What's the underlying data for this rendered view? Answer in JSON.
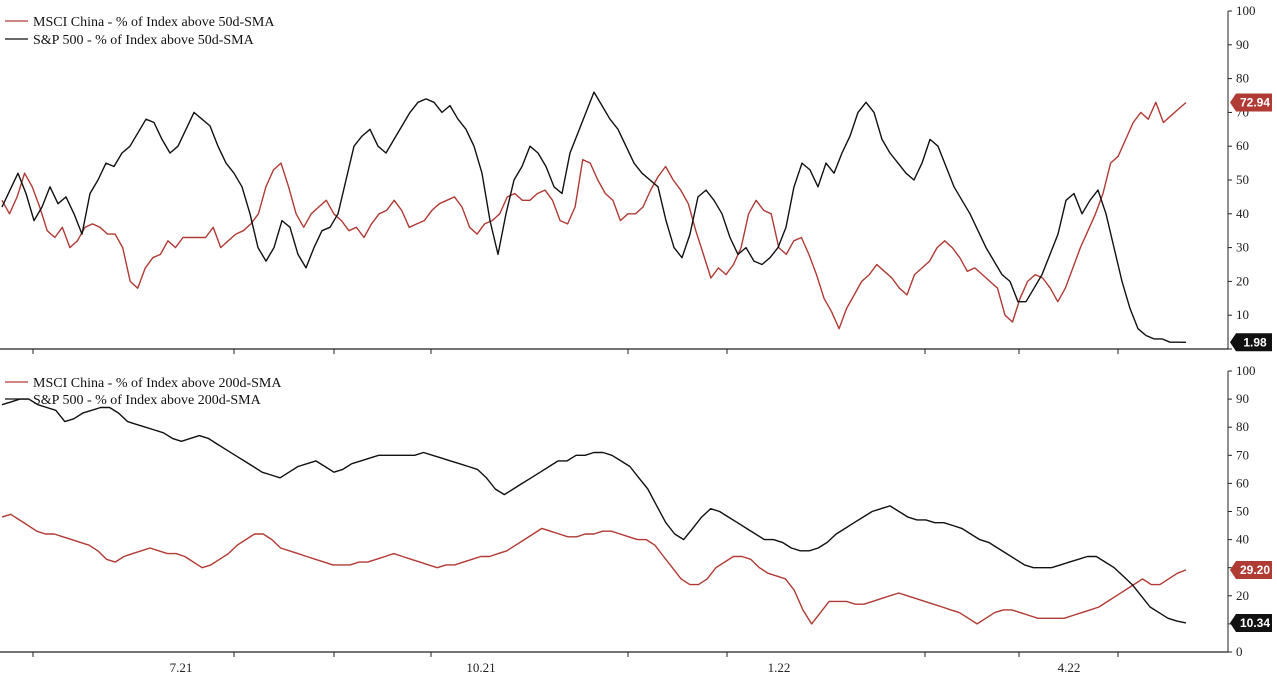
{
  "colors": {
    "msci": "#b03a34",
    "sp500": "#111111",
    "axis": "#222222"
  },
  "x_tick_labels": [
    "7.21",
    "10.21",
    "1.22",
    "4.22"
  ],
  "chart_data": [
    {
      "type": "line",
      "ylim": [
        0,
        100
      ],
      "yticks": [
        10,
        20,
        30,
        40,
        50,
        60,
        70,
        80,
        90,
        100
      ],
      "last_values": {
        "msci": "72.94",
        "sp500": "1.98"
      },
      "series": [
        {
          "name": "MSCI China - % of Index above 50d-SMA",
          "key": "msci",
          "values": [
            44,
            40,
            45,
            52,
            48,
            42,
            35,
            33,
            36,
            30,
            32,
            36,
            37,
            36,
            34,
            34,
            30,
            20,
            18,
            24,
            27,
            28,
            32,
            30,
            33,
            33,
            33,
            33,
            36,
            30,
            32,
            34,
            35,
            37,
            40,
            48,
            53,
            55,
            48,
            40,
            36,
            40,
            42,
            44,
            40,
            38,
            35,
            36,
            33,
            37,
            40,
            41,
            44,
            41,
            36,
            37,
            38,
            41,
            43,
            44,
            45,
            42,
            36,
            34,
            37,
            38,
            40,
            45,
            46,
            44,
            44,
            46,
            47,
            44,
            38,
            37,
            42,
            56,
            55,
            50,
            46,
            44,
            38,
            40,
            40,
            42,
            47,
            51,
            54,
            50,
            47,
            43,
            35,
            28,
            21,
            24,
            22,
            25,
            30,
            40,
            44,
            41,
            40,
            30,
            28,
            32,
            33,
            28,
            22,
            15,
            11,
            6,
            12,
            16,
            20,
            22,
            25,
            23,
            21,
            18,
            16,
            22,
            24,
            26,
            30,
            32,
            30,
            27,
            23,
            24,
            22,
            20,
            18,
            10,
            8,
            15,
            20,
            22,
            21,
            18,
            14,
            18,
            24,
            30,
            35,
            40,
            46,
            55,
            57,
            62,
            67,
            70,
            68,
            73,
            67,
            69,
            71,
            72.94
          ]
        },
        {
          "name": "S&P 500 - % of Index above 50d-SMA",
          "key": "sp500",
          "values": [
            42,
            47,
            52,
            46,
            38,
            42,
            48,
            43,
            45,
            40,
            34,
            46,
            50,
            55,
            54,
            58,
            60,
            64,
            68,
            67,
            62,
            58,
            60,
            65,
            70,
            68,
            66,
            60,
            55,
            52,
            48,
            40,
            30,
            26,
            30,
            38,
            36,
            28,
            24,
            30,
            35,
            36,
            40,
            50,
            60,
            63,
            65,
            60,
            58,
            62,
            66,
            70,
            73,
            74,
            73,
            70,
            72,
            68,
            65,
            60,
            52,
            38,
            28,
            40,
            50,
            54,
            60,
            58,
            54,
            48,
            46,
            58,
            64,
            70,
            76,
            72,
            68,
            65,
            60,
            55,
            52,
            50,
            48,
            38,
            30,
            27,
            34,
            45,
            47,
            44,
            40,
            33,
            28,
            30,
            26,
            25,
            27,
            30,
            36,
            48,
            55,
            53,
            48,
            55,
            52,
            58,
            63,
            70,
            73,
            70,
            62,
            58,
            55,
            52,
            50,
            55,
            62,
            60,
            54,
            48,
            44,
            40,
            35,
            30,
            26,
            22,
            20,
            14,
            14,
            18,
            22,
            28,
            34,
            44,
            46,
            40,
            44,
            47,
            40,
            30,
            20,
            12,
            6,
            4,
            3,
            3,
            2,
            2,
            1.98
          ]
        }
      ]
    },
    {
      "type": "line",
      "ylim": [
        0,
        100
      ],
      "yticks": [
        10,
        20,
        30,
        40,
        50,
        60,
        70,
        80,
        90,
        100
      ],
      "last_values": {
        "msci": "29.20",
        "sp500": "10.34"
      },
      "series": [
        {
          "name": "MSCI China - % of Index above 200d-SMA",
          "key": "msci",
          "values": [
            48,
            49,
            47,
            45,
            43,
            42,
            42,
            41,
            40,
            39,
            38,
            36,
            33,
            32,
            34,
            35,
            36,
            37,
            36,
            35,
            35,
            34,
            32,
            30,
            31,
            33,
            35,
            38,
            40,
            42,
            42,
            40,
            37,
            36,
            35,
            34,
            33,
            32,
            31,
            31,
            31,
            32,
            32,
            33,
            34,
            35,
            34,
            33,
            32,
            31,
            30,
            31,
            31,
            32,
            33,
            34,
            34,
            35,
            36,
            38,
            40,
            42,
            44,
            43,
            42,
            41,
            41,
            42,
            42,
            43,
            43,
            42,
            41,
            40,
            40,
            38,
            34,
            30,
            26,
            24,
            24,
            26,
            30,
            32,
            34,
            34,
            33,
            30,
            28,
            27,
            26,
            22,
            15,
            10,
            14,
            18,
            18,
            18,
            17,
            17,
            18,
            19,
            20,
            21,
            20,
            19,
            18,
            17,
            16,
            15,
            14,
            12,
            10,
            12,
            14,
            15,
            15,
            14,
            13,
            12,
            12,
            12,
            12,
            13,
            14,
            15,
            16,
            18,
            20,
            22,
            24,
            26,
            24,
            24,
            26,
            28,
            29.2
          ]
        },
        {
          "name": "S&P 500 - % of Index above 200d-SMA",
          "key": "sp500",
          "values": [
            88,
            89,
            90,
            90,
            88,
            87,
            86,
            82,
            83,
            85,
            86,
            87,
            87,
            85,
            82,
            81,
            80,
            79,
            78,
            76,
            75,
            76,
            77,
            76,
            74,
            72,
            70,
            68,
            66,
            64,
            63,
            62,
            64,
            66,
            67,
            68,
            66,
            64,
            65,
            67,
            68,
            69,
            70,
            70,
            70,
            70,
            70,
            71,
            70,
            69,
            68,
            67,
            66,
            65,
            62,
            58,
            56,
            58,
            60,
            62,
            64,
            66,
            68,
            68,
            70,
            70,
            71,
            71,
            70,
            68,
            66,
            62,
            58,
            52,
            46,
            42,
            40,
            44,
            48,
            51,
            50,
            48,
            46,
            44,
            42,
            40,
            40,
            39,
            37,
            36,
            36,
            37,
            39,
            42,
            44,
            46,
            48,
            50,
            51,
            52,
            50,
            48,
            47,
            47,
            46,
            46,
            45,
            44,
            42,
            40,
            39,
            37,
            35,
            33,
            31,
            30,
            30,
            30,
            31,
            32,
            33,
            34,
            34,
            32,
            30,
            27,
            24,
            20,
            16,
            14,
            12,
            11,
            10.34
          ]
        }
      ]
    }
  ]
}
